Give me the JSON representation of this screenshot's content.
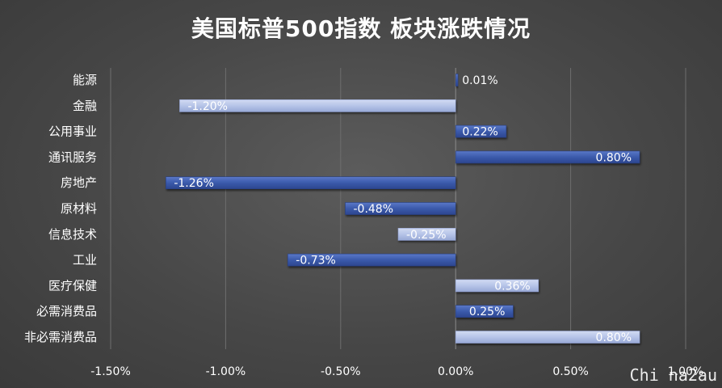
{
  "title": "美国标普500指数 板块涨跌情况",
  "watermark": "Chi na2au",
  "colors": {
    "background": "#474747",
    "gridline": "#6e6e6e",
    "text": "#ffffff",
    "dark_bar": "#3f5fb0",
    "light_bar": "#b4c2e6"
  },
  "chart_data": {
    "type": "bar",
    "orientation": "horizontal",
    "title": "美国标普500指数 板块涨跌情况",
    "categories": [
      "能源",
      "金融",
      "公用事业",
      "通讯服务",
      "房地产",
      "原材料",
      "信息技术",
      "工业",
      "医疗保健",
      "必需消费品",
      "非必需消费品"
    ],
    "values": [
      0.01,
      -1.2,
      0.22,
      0.8,
      -1.26,
      -0.48,
      -0.25,
      -0.73,
      0.36,
      0.25,
      0.8
    ],
    "value_labels": [
      "0.01%",
      "-1.20%",
      "0.22%",
      "0.80%",
      "-1.26%",
      "-0.48%",
      "-0.25%",
      "-0.73%",
      "0.36%",
      "0.25%",
      "0.80%"
    ],
    "bar_styles": [
      "dark",
      "light",
      "dark",
      "dark",
      "dark",
      "dark",
      "light",
      "dark",
      "light",
      "dark",
      "light"
    ],
    "xlim": [
      -1.5,
      1.0
    ],
    "xticks": [
      -1.5,
      -1.0,
      -0.5,
      0.0,
      0.5,
      1.0
    ],
    "xtick_labels": [
      "-1.50%",
      "-1.00%",
      "-0.50%",
      "0.00%",
      "0.50%",
      "1.00%"
    ],
    "grid": "vertical",
    "legend": "none"
  }
}
